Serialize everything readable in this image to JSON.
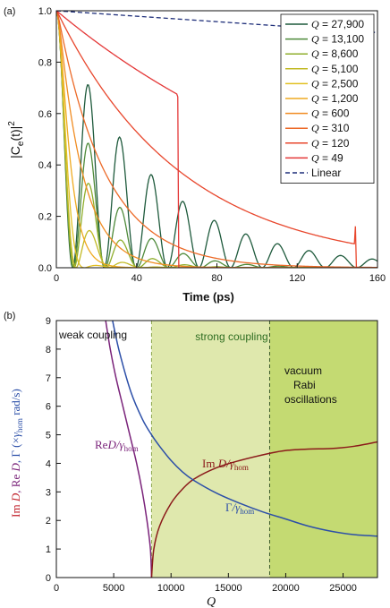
{
  "chart_data": [
    {
      "panel_label": "(a)",
      "type": "line",
      "xlabel": "Time (ps)",
      "ylabel": "|C",
      "ylabel_sub": "e",
      "ylabel_tail": "(t)|",
      "ylabel_sup": "2",
      "xlim": [
        0,
        160
      ],
      "ylim": [
        0,
        1.0
      ],
      "xticks": [
        0,
        40,
        80,
        120,
        160
      ],
      "yticks": [
        0.0,
        0.2,
        0.4,
        0.6,
        0.8,
        1.0
      ],
      "ytick_labels": [
        "0.0",
        "0.2",
        "0.4",
        "0.6",
        "0.8",
        "1.0"
      ],
      "grid": false,
      "legend_position": "top-right",
      "series": [
        {
          "name": "Q = 27,900",
          "Q": 27900,
          "color": "#1e5a3c"
        },
        {
          "name": "Q = 13,100",
          "Q": 13100,
          "color": "#4e8a3a"
        },
        {
          "name": "Q = 8,600",
          "Q": 8600,
          "color": "#8fae2c"
        },
        {
          "name": "Q = 5,100",
          "Q": 5100,
          "color": "#c2ba26"
        },
        {
          "name": "Q = 2,500",
          "Q": 2500,
          "color": "#e2c022"
        },
        {
          "name": "Q = 1,200",
          "Q": 1200,
          "color": "#efaa20"
        },
        {
          "name": "Q = 600",
          "Q": 600,
          "color": "#f08c22"
        },
        {
          "name": "Q = 310",
          "Q": 310,
          "color": "#ec6a28"
        },
        {
          "name": "Q = 120",
          "Q": 120,
          "color": "#e8472d"
        },
        {
          "name": "Q = 49",
          "Q": 49,
          "color": "#e43838"
        },
        {
          "name": "Linear",
          "color": "#1f2f7a",
          "dashed": true
        }
      ],
      "legend_items": [
        {
          "prefix": "Q",
          "value": " = 27,900"
        },
        {
          "prefix": "Q",
          "value": " = 13,100"
        },
        {
          "prefix": "Q",
          "value": " = 8,600"
        },
        {
          "prefix": "Q",
          "value": " = 5,100"
        },
        {
          "prefix": "Q",
          "value": " = 2,500"
        },
        {
          "prefix": "Q",
          "value": " = 1,200"
        },
        {
          "prefix": "Q",
          "value": " = 600"
        },
        {
          "prefix": "Q",
          "value": " = 310"
        },
        {
          "prefix": "Q",
          "value": " = 120"
        },
        {
          "prefix": "Q",
          "value": " = 49"
        },
        {
          "prefix": "",
          "value": "Linear"
        }
      ]
    },
    {
      "panel_label": "(b)",
      "type": "line",
      "xlabel": "Q",
      "ylabel_parts": [
        "Im ",
        "D",
        ", Re ",
        "D",
        ", Γ (×",
        "γ",
        "hom",
        " rad/s)"
      ],
      "xlim": [
        0,
        28000
      ],
      "ylim": [
        0,
        9
      ],
      "xticks": [
        0,
        5000,
        10000,
        15000,
        20000,
        25000
      ],
      "yticks": [
        0,
        1,
        2,
        3,
        4,
        5,
        6,
        7,
        8,
        9
      ],
      "grid": false,
      "regions": [
        {
          "label": "weak coupling",
          "from": 0,
          "to": 8300,
          "color": "#ffffff",
          "text_color": "#111111"
        },
        {
          "label": "strong coupling",
          "from": 8300,
          "to": 18600,
          "color": "#dfe8ad",
          "text_color": "#2f6e22"
        },
        {
          "label": "vacuum\nRabi\noscillations",
          "from": 18600,
          "to": 28000,
          "color": "#c4da72",
          "text_color": "#111111"
        }
      ],
      "region_labels": {
        "weak": "weak coupling",
        "strong": "strong coupling",
        "vrabi_1": "vacuum",
        "vrabi_2": "Rabi",
        "vrabi_3": "oscillations"
      },
      "series": [
        {
          "name": "Re D/γhom",
          "label": {
            "main": "Re",
            "var": "D",
            "slash": "/γ",
            "sub": "hom"
          },
          "color": "#7a237a",
          "x": [
            4300,
            4700,
            5200,
            5800,
            6400,
            7000,
            7500,
            7900,
            8200,
            8300
          ],
          "y": [
            9.0,
            8.0,
            7.0,
            6.0,
            5.0,
            4.0,
            3.0,
            2.0,
            1.0,
            0.0
          ]
        },
        {
          "name": "Im D/γhom",
          "label": {
            "main": "Im ",
            "var": "D",
            "slash": "/γ",
            "sub": "hom"
          },
          "color": "#8b1a1a",
          "x": [
            8300,
            8500,
            9000,
            10000,
            11000,
            12000,
            14000,
            16000,
            18600,
            20000,
            22000,
            24000,
            26000,
            28000
          ],
          "y": [
            0.0,
            1.0,
            1.8,
            2.6,
            3.1,
            3.45,
            3.85,
            4.1,
            4.35,
            4.45,
            4.5,
            4.52,
            4.6,
            4.75
          ]
        },
        {
          "name": "Γ/γhom",
          "label": {
            "main": "Γ",
            "var": "",
            "slash": "/γ",
            "sub": "hom"
          },
          "color": "#2c4fa8",
          "x": [
            4900,
            5500,
            6500,
            7500,
            8300,
            9000,
            10000,
            11000,
            12000,
            14000,
            16000,
            18000,
            20000,
            22000,
            24000,
            26000,
            28000
          ],
          "y": [
            9.0,
            7.9,
            6.5,
            5.55,
            5.0,
            4.6,
            4.1,
            3.7,
            3.4,
            2.95,
            2.6,
            2.3,
            2.05,
            1.8,
            1.62,
            1.5,
            1.45
          ]
        }
      ]
    }
  ]
}
